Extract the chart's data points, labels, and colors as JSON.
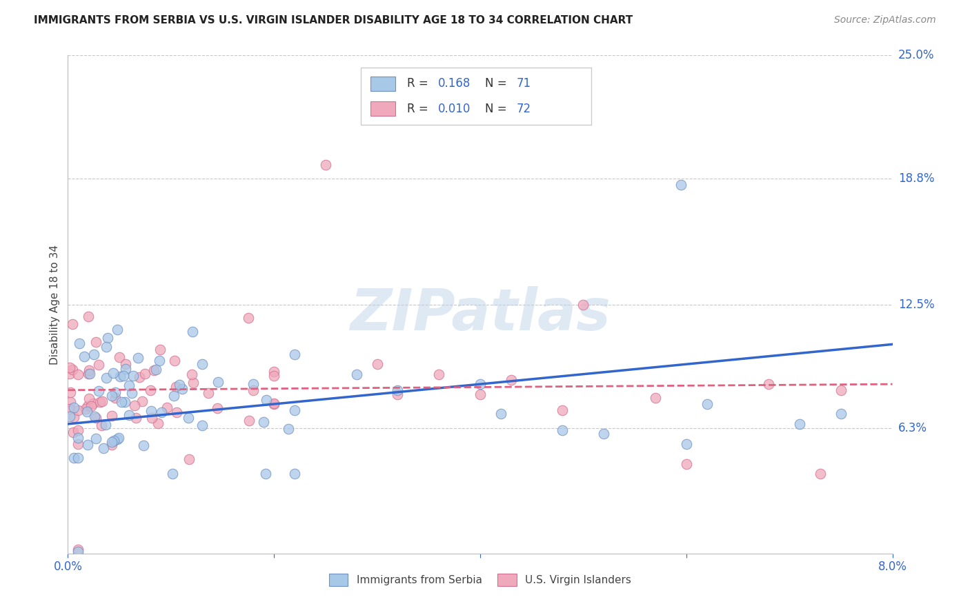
{
  "title": "IMMIGRANTS FROM SERBIA VS U.S. VIRGIN ISLANDER DISABILITY AGE 18 TO 34 CORRELATION CHART",
  "source": "Source: ZipAtlas.com",
  "ylabel": "Disability Age 18 to 34",
  "xlim": [
    0.0,
    0.08
  ],
  "ylim": [
    0.0,
    0.25
  ],
  "ytick_positions": [
    0.063,
    0.125,
    0.188,
    0.25
  ],
  "ytick_labels": [
    "6.3%",
    "12.5%",
    "18.8%",
    "25.0%"
  ],
  "grid_color": "#c8c8c8",
  "background_color": "#ffffff",
  "watermark_text": "ZIPatlas",
  "series1_label": "Immigrants from Serbia",
  "series2_label": "U.S. Virgin Islanders",
  "series1_color": "#a8c8e8",
  "series2_color": "#f0a8bc",
  "series1_edge_color": "#7090c0",
  "series2_edge_color": "#d07090",
  "series1_line_color": "#3366cc",
  "series2_line_color": "#e06080",
  "legend_text_color": "#3366cc",
  "legend_R1": "R = ",
  "legend_R1_val": "0.168",
  "legend_N1": "N = ",
  "legend_N1_val": "71",
  "legend_R2": "R = ",
  "legend_R2_val": "0.010",
  "legend_N2": "N = ",
  "legend_N2_val": "72",
  "title_color": "#222222",
  "source_color": "#888888",
  "axis_tick_color": "#3366cc"
}
